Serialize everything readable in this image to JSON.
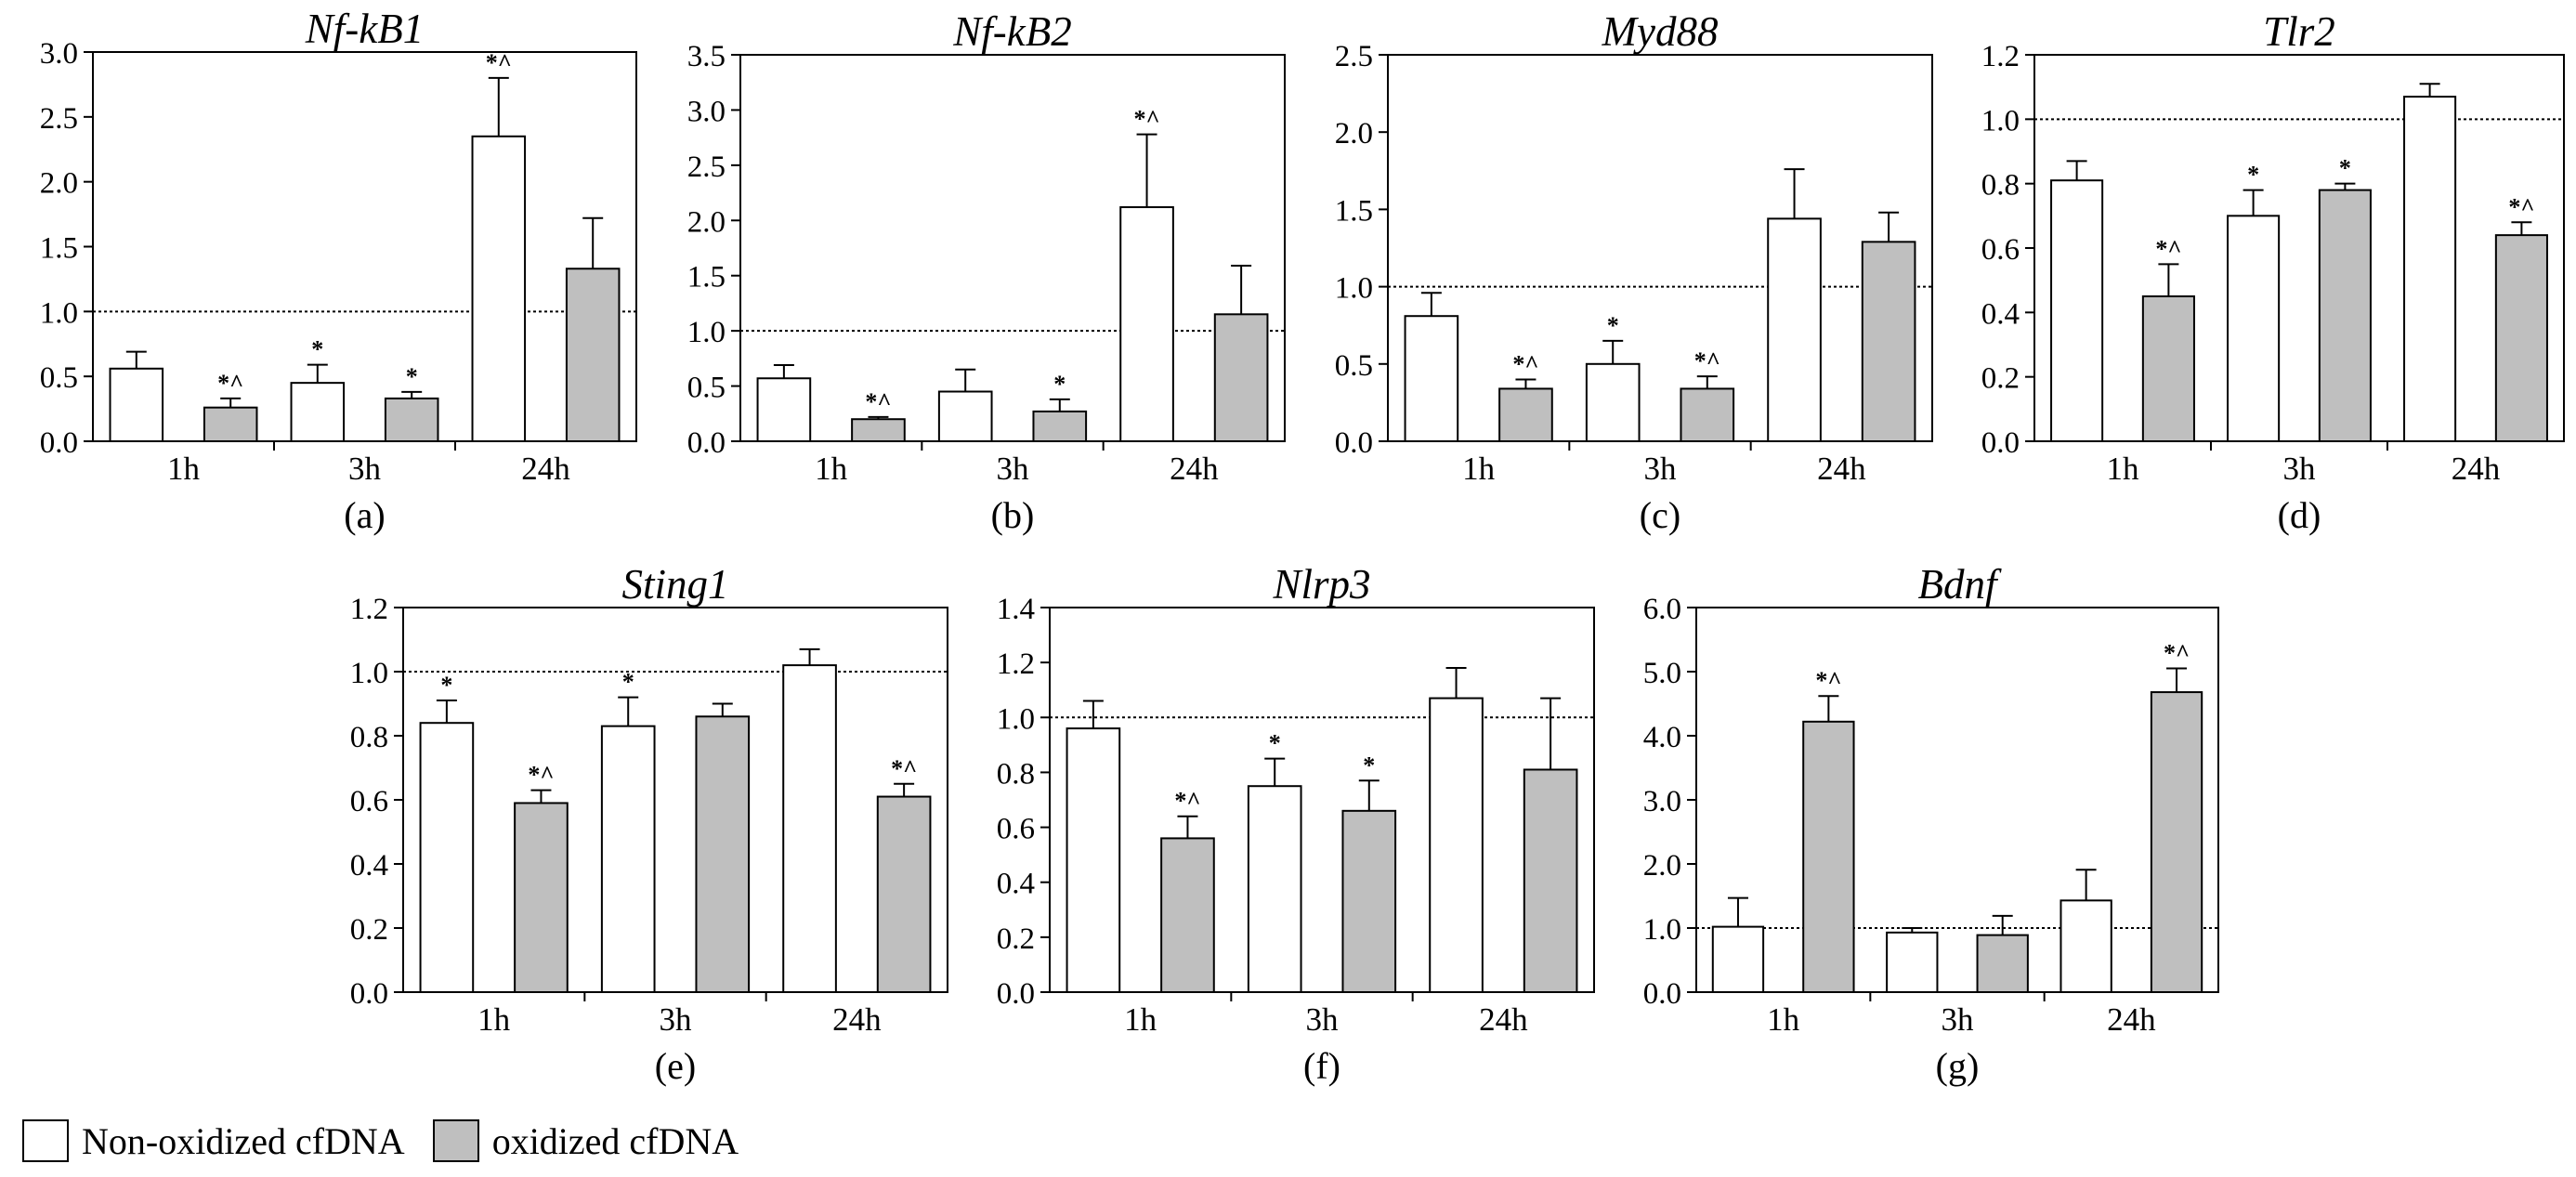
{
  "figure": {
    "legend": [
      {
        "label": "Non-oxidized cfDNA",
        "color": "#ffffff"
      },
      {
        "label": "oxidized cfDNA",
        "color": "#bfbfbf"
      }
    ]
  },
  "chart_data": [
    {
      "type": "bar",
      "panel": "(a)",
      "title": "Nf-kB1",
      "categories": [
        "1h",
        "3h",
        "24h"
      ],
      "ylim": [
        0,
        3.0
      ],
      "yticks": [
        "0.0",
        "0.5",
        "1.0",
        "1.5",
        "2.0",
        "2.5",
        "3.0"
      ],
      "reference_line": 1.0,
      "series": [
        {
          "name": "Non-oxidized cfDNA",
          "values": [
            0.56,
            0.45,
            2.35
          ],
          "errors": [
            0.13,
            0.14,
            0.45
          ],
          "annotations": [
            "",
            "*",
            "*^"
          ]
        },
        {
          "name": "oxidized cfDNA",
          "values": [
            0.26,
            0.33,
            1.33
          ],
          "errors": [
            0.07,
            0.05,
            0.39
          ],
          "annotations": [
            "*^",
            "*",
            ""
          ]
        }
      ]
    },
    {
      "type": "bar",
      "panel": "(b)",
      "title": "Nf-kB2",
      "categories": [
        "1h",
        "3h",
        "24h"
      ],
      "ylim": [
        0,
        3.5
      ],
      "yticks": [
        "0.0",
        "0.5",
        "1.0",
        "1.5",
        "2.0",
        "2.5",
        "3.0",
        "3.5"
      ],
      "reference_line": 1.0,
      "series": [
        {
          "name": "Non-oxidized cfDNA",
          "values": [
            0.57,
            0.45,
            2.12
          ],
          "errors": [
            0.12,
            0.2,
            0.66
          ],
          "annotations": [
            "",
            "",
            "*^"
          ]
        },
        {
          "name": "oxidized cfDNA",
          "values": [
            0.2,
            0.27,
            1.15
          ],
          "errors": [
            0.02,
            0.11,
            0.44
          ],
          "annotations": [
            "*^",
            "*",
            ""
          ]
        }
      ]
    },
    {
      "type": "bar",
      "panel": "(c)",
      "title": "Myd88",
      "categories": [
        "1h",
        "3h",
        "24h"
      ],
      "ylim": [
        0,
        2.5
      ],
      "yticks": [
        "0.0",
        "0.5",
        "1.0",
        "1.5",
        "2.0",
        "2.5"
      ],
      "reference_line": 1.0,
      "series": [
        {
          "name": "Non-oxidized cfDNA",
          "values": [
            0.81,
            0.5,
            1.44
          ],
          "errors": [
            0.15,
            0.15,
            0.32
          ],
          "annotations": [
            "",
            "*",
            ""
          ]
        },
        {
          "name": "oxidized cfDNA",
          "values": [
            0.34,
            0.34,
            1.29
          ],
          "errors": [
            0.06,
            0.08,
            0.19
          ],
          "annotations": [
            "*^",
            "*^",
            ""
          ]
        }
      ]
    },
    {
      "type": "bar",
      "panel": "(d)",
      "title": "Tlr2",
      "categories": [
        "1h",
        "3h",
        "24h"
      ],
      "ylim": [
        0,
        1.2
      ],
      "yticks": [
        "0.0",
        "0.2",
        "0.4",
        "0.6",
        "0.8",
        "1.0",
        "1.2"
      ],
      "reference_line": 1.0,
      "series": [
        {
          "name": "Non-oxidized cfDNA",
          "values": [
            0.81,
            0.7,
            1.07
          ],
          "errors": [
            0.06,
            0.08,
            0.04
          ],
          "annotations": [
            "",
            "*",
            ""
          ]
        },
        {
          "name": "oxidized cfDNA",
          "values": [
            0.45,
            0.78,
            0.64
          ],
          "errors": [
            0.1,
            0.02,
            0.04
          ],
          "annotations": [
            "*^",
            "*",
            "*^"
          ]
        }
      ]
    },
    {
      "type": "bar",
      "panel": "(e)",
      "title": "Sting1",
      "categories": [
        "1h",
        "3h",
        "24h"
      ],
      "ylim": [
        0,
        1.2
      ],
      "yticks": [
        "0.0",
        "0.2",
        "0.4",
        "0.6",
        "0.8",
        "1.0",
        "1.2"
      ],
      "reference_line": 1.0,
      "series": [
        {
          "name": "Non-oxidized cfDNA",
          "values": [
            0.84,
            0.83,
            1.02
          ],
          "errors": [
            0.07,
            0.09,
            0.05
          ],
          "annotations": [
            "*",
            "*",
            ""
          ]
        },
        {
          "name": "oxidized cfDNA",
          "values": [
            0.59,
            0.86,
            0.61
          ],
          "errors": [
            0.04,
            0.04,
            0.04
          ],
          "annotations": [
            "*^",
            "",
            "*^"
          ]
        }
      ]
    },
    {
      "type": "bar",
      "panel": "(f)",
      "title": "Nlrp3",
      "categories": [
        "1h",
        "3h",
        "24h"
      ],
      "ylim": [
        0,
        1.4
      ],
      "yticks": [
        "0.0",
        "0.2",
        "0.4",
        "0.6",
        "0.8",
        "1.0",
        "1.2",
        "1.4"
      ],
      "reference_line": 1.0,
      "series": [
        {
          "name": "Non-oxidized cfDNA",
          "values": [
            0.96,
            0.75,
            1.07
          ],
          "errors": [
            0.1,
            0.1,
            0.11
          ],
          "annotations": [
            "",
            "*",
            ""
          ]
        },
        {
          "name": "oxidized cfDNA",
          "values": [
            0.56,
            0.66,
            0.81
          ],
          "errors": [
            0.08,
            0.11,
            0.26
          ],
          "annotations": [
            "*^",
            "*",
            ""
          ]
        }
      ]
    },
    {
      "type": "bar",
      "panel": "(g)",
      "title": "Bdnf",
      "categories": [
        "1h",
        "3h",
        "24h"
      ],
      "ylim": [
        0,
        6.0
      ],
      "yticks": [
        "0.0",
        "1.0",
        "2.0",
        "3.0",
        "4.0",
        "5.0",
        "6.0"
      ],
      "reference_line": 1.0,
      "series": [
        {
          "name": "Non-oxidized cfDNA",
          "values": [
            1.02,
            0.93,
            1.43
          ],
          "errors": [
            0.45,
            0.07,
            0.48
          ],
          "annotations": [
            "",
            "",
            ""
          ]
        },
        {
          "name": "oxidized cfDNA",
          "values": [
            4.22,
            0.89,
            4.68
          ],
          "errors": [
            0.4,
            0.3,
            0.37
          ],
          "annotations": [
            "*^",
            "",
            "*^"
          ]
        }
      ]
    }
  ]
}
